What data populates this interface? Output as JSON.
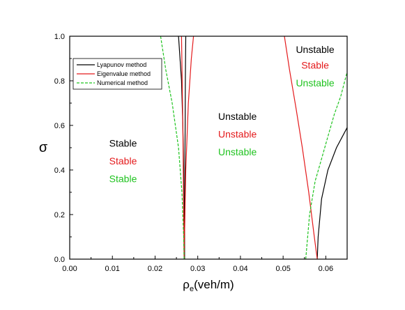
{
  "chart_data": {
    "type": "line",
    "xlabel_main": "ρ",
    "xlabel_sub": "e",
    "xlabel_rest": "(veh/m)",
    "ylabel": "σ",
    "xlim": [
      0.0,
      0.065
    ],
    "ylim": [
      0.0,
      1.0
    ],
    "x_ticks": [
      {
        "value": 0.0,
        "label": "0.00"
      },
      {
        "value": 0.01,
        "label": "0.01"
      },
      {
        "value": 0.02,
        "label": "0.02"
      },
      {
        "value": 0.03,
        "label": "0.03"
      },
      {
        "value": 0.04,
        "label": "0.04"
      },
      {
        "value": 0.05,
        "label": "0.05"
      },
      {
        "value": 0.06,
        "label": "0.06"
      }
    ],
    "y_ticks": [
      {
        "value": 0.0,
        "label": "0.0"
      },
      {
        "value": 0.2,
        "label": "0.2"
      },
      {
        "value": 0.4,
        "label": "0.4"
      },
      {
        "value": 0.6,
        "label": "0.6"
      },
      {
        "value": 0.8,
        "label": "0.8"
      },
      {
        "value": 1.0,
        "label": "1.0"
      }
    ],
    "grid": false,
    "legend_position": "top-left",
    "series": [
      {
        "name": "Lyapunov method",
        "color": "#000000",
        "dash": "solid",
        "segments": [
          [
            [
              0.0255,
              1.0
            ],
            [
              0.0262,
              0.8
            ],
            [
              0.0265,
              0.6
            ],
            [
              0.0267,
              0.4
            ],
            [
              0.0268,
              0.2
            ],
            [
              0.0269,
              0.0
            ]
          ],
          [
            [
              0.0269,
              0.0
            ],
            [
              0.027,
              0.4
            ],
            [
              0.0271,
              0.8
            ],
            [
              0.0272,
              1.0
            ]
          ],
          [
            [
              0.058,
              0.0
            ],
            [
              0.0582,
              0.1
            ],
            [
              0.059,
              0.27
            ],
            [
              0.0605,
              0.4
            ],
            [
              0.0625,
              0.5
            ],
            [
              0.065,
              0.59
            ]
          ]
        ]
      },
      {
        "name": "Eigenvalue method",
        "color": "#e41a1c",
        "dash": "solid",
        "segments": [
          [
            [
              0.0262,
              1.0
            ],
            [
              0.0265,
              0.6
            ],
            [
              0.0267,
              0.2
            ],
            [
              0.0268,
              0.0
            ]
          ],
          [
            [
              0.0268,
              0.0
            ],
            [
              0.0272,
              0.4
            ],
            [
              0.0278,
              0.7
            ],
            [
              0.0285,
              0.9
            ],
            [
              0.029,
              1.0
            ]
          ],
          [
            [
              0.0503,
              1.0
            ],
            [
              0.0515,
              0.85
            ],
            [
              0.053,
              0.68
            ],
            [
              0.0545,
              0.5
            ],
            [
              0.056,
              0.3
            ],
            [
              0.0573,
              0.1
            ],
            [
              0.058,
              0.0
            ]
          ]
        ]
      },
      {
        "name": "Numerical method",
        "color": "#1fc31f",
        "dash": "dashed",
        "segments": [
          [
            [
              0.0213,
              1.0
            ],
            [
              0.0225,
              0.85
            ],
            [
              0.024,
              0.7
            ],
            [
              0.0255,
              0.5
            ],
            [
              0.0263,
              0.3
            ],
            [
              0.0267,
              0.1
            ],
            [
              0.0268,
              0.0
            ]
          ],
          [
            [
              0.0553,
              0.0
            ],
            [
              0.0562,
              0.2
            ],
            [
              0.0575,
              0.35
            ],
            [
              0.059,
              0.45
            ],
            [
              0.0605,
              0.55
            ],
            [
              0.062,
              0.65
            ],
            [
              0.0635,
              0.73
            ],
            [
              0.065,
              0.84
            ]
          ]
        ]
      }
    ],
    "annotations": [
      {
        "text": "Stable",
        "color": "#000000",
        "x": 0.0125,
        "y": 0.505
      },
      {
        "text": "Stable",
        "color": "#e41a1c",
        "x": 0.0125,
        "y": 0.425
      },
      {
        "text": "Stable",
        "color": "#1fc31f",
        "x": 0.0125,
        "y": 0.345
      },
      {
        "text": "Unstable",
        "color": "#000000",
        "x": 0.0393,
        "y": 0.625
      },
      {
        "text": "Unstable",
        "color": "#e41a1c",
        "x": 0.0393,
        "y": 0.545
      },
      {
        "text": "Unstable",
        "color": "#1fc31f",
        "x": 0.0393,
        "y": 0.465
      },
      {
        "text": "Unstable",
        "color": "#000000",
        "x": 0.0575,
        "y": 0.925
      },
      {
        "text": "Stable",
        "color": "#e41a1c",
        "x": 0.0575,
        "y": 0.855
      },
      {
        "text": "Unstable",
        "color": "#1fc31f",
        "x": 0.0575,
        "y": 0.775
      }
    ]
  }
}
